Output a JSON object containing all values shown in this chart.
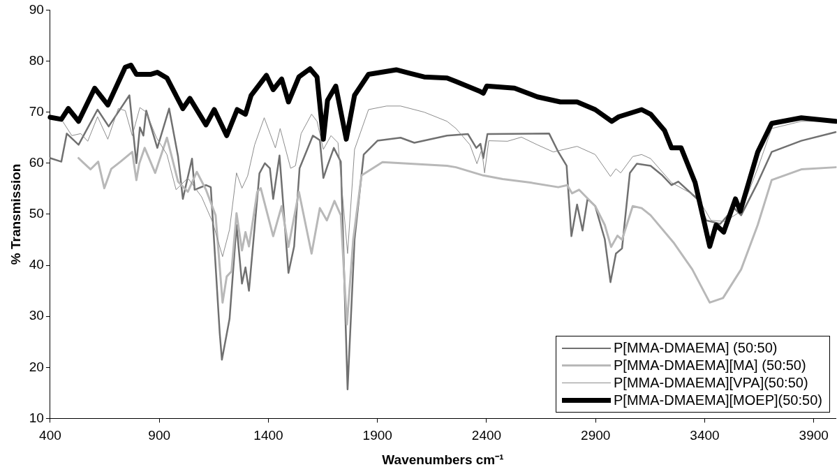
{
  "chart_data": {
    "type": "line",
    "xlabel": "Wavenumbers cm⁻¹",
    "ylabel": "% Transmission",
    "xlim": [
      400,
      4000
    ],
    "ylim": [
      10,
      90
    ],
    "xticks": [
      400,
      900,
      1400,
      1900,
      2400,
      2900,
      3400,
      3900
    ],
    "yticks": [
      10,
      20,
      30,
      40,
      50,
      60,
      70,
      80,
      90
    ],
    "grid": false,
    "legend": "bottom right",
    "series": [
      {
        "name": "P[MMA-DMAEMA] (50:50)",
        "color": "#707070",
        "x": [
          400,
          451,
          476,
          530,
          617,
          668,
          763,
          795,
          811,
          827,
          840,
          891,
          945,
          986,
          1008,
          1050,
          1062,
          1114,
          1136,
          1177,
          1187,
          1222,
          1254,
          1279,
          1295,
          1311,
          1359,
          1384,
          1407,
          1422,
          1451,
          1492,
          1518,
          1543,
          1604,
          1636,
          1652,
          1671,
          1700,
          1732,
          1763,
          1795,
          1837,
          1900,
          2006,
          2069,
          2219,
          2315,
          2353,
          2372,
          2385,
          2404,
          2687,
          2729,
          2767,
          2789,
          2815,
          2840,
          2863,
          2898,
          2942,
          2968,
          2993,
          3021,
          3057,
          3089,
          3152,
          3206,
          3248,
          3279,
          3366,
          3407,
          3471,
          3535,
          3567,
          3643,
          3707,
          3843,
          4000
        ],
        "values": [
          61,
          60.3,
          65.8,
          63.6,
          70.5,
          67.2,
          73.3,
          60,
          67,
          65.4,
          70.3,
          63,
          70.7,
          61.3,
          53,
          60.9,
          54.8,
          55.7,
          55.3,
          26.7,
          21.5,
          29.5,
          47.9,
          36.4,
          39.6,
          35,
          58,
          60,
          59,
          53,
          61.5,
          38.5,
          43.7,
          59,
          65.4,
          64.5,
          57.1,
          59.5,
          63,
          60.3,
          15.7,
          45.1,
          61.7,
          64.4,
          65,
          64,
          65.4,
          65.7,
          63,
          63.8,
          61,
          65.7,
          65.8,
          62.2,
          59.5,
          45.7,
          51.9,
          46.8,
          53,
          51.6,
          45.1,
          36.7,
          42.3,
          43.3,
          58.1,
          59.9,
          59.5,
          57.6,
          55.7,
          56.4,
          53,
          48.8,
          48.1,
          51.2,
          49.8,
          56.2,
          62.2,
          64.4,
          66.1
        ]
      },
      {
        "name": "P[MMA-DMAEMA][MA] (50:50)",
        "color": "#b8b8b8",
        "x": [
          530,
          547,
          585,
          620,
          648,
          680,
          722,
          776,
          795,
          808,
          833,
          881,
          935,
          986,
          1031,
          1072,
          1114,
          1158,
          1190,
          1209,
          1231,
          1254,
          1279,
          1295,
          1311,
          1349,
          1365,
          1422,
          1461,
          1492,
          1540,
          1598,
          1636,
          1668,
          1703,
          1732,
          1760,
          1789,
          1827,
          1923,
          2219,
          2260,
          2385,
          2474,
          2601,
          2729,
          2770,
          2792,
          2824,
          2856,
          2898,
          2942,
          2971,
          3000,
          3021,
          3070,
          3111,
          3152,
          3260,
          3343,
          3423,
          3484,
          3567,
          3643,
          3707,
          3843,
          4000
        ],
        "values": [
          61,
          60.3,
          58.8,
          60.3,
          55.1,
          58.9,
          60.3,
          62.2,
          56.7,
          59.9,
          63,
          58.1,
          65,
          56.4,
          54.4,
          58.3,
          54.8,
          49.8,
          32.7,
          37.8,
          38.8,
          50.2,
          42.9,
          46.5,
          43.7,
          54.4,
          55.1,
          45.7,
          51.6,
          43.6,
          54.4,
          42.3,
          51.2,
          48.8,
          52.6,
          49.8,
          28.4,
          45.1,
          57.6,
          60.2,
          59.5,
          59.2,
          57.6,
          56.9,
          56.2,
          55.3,
          55.7,
          54.1,
          54.8,
          53.4,
          51.6,
          47.9,
          43.6,
          45.8,
          45,
          51.6,
          51.2,
          49.8,
          44.3,
          39.2,
          32.7,
          33.6,
          39.2,
          47.9,
          56.7,
          58.8,
          59.2
        ]
      },
      {
        "name": "P[MMA-DMAEMA][VPA](50:50)",
        "color": "#8c8c8c",
        "x": [
          400,
          451,
          499,
          540,
          572,
          617,
          664,
          712,
          744,
          776,
          811,
          840,
          887,
          935,
          977,
          1031,
          1094,
          1145,
          1190,
          1222,
          1254,
          1279,
          1305,
          1337,
          1381,
          1432,
          1454,
          1502,
          1524,
          1550,
          1598,
          1623,
          1652,
          1687,
          1719,
          1763,
          1795,
          1859,
          1942,
          2006,
          2114,
          2219,
          2260,
          2324,
          2356,
          2378,
          2391,
          2410,
          2496,
          2560,
          2633,
          2706,
          2815,
          2898,
          2968,
          2993,
          3015,
          3070,
          3111,
          3152,
          3248,
          3366,
          3429,
          3493,
          3567,
          3643,
          3707,
          3843,
          4000
        ],
        "values": [
          69,
          68.6,
          65.4,
          65.8,
          64.3,
          69.1,
          64.7,
          70.7,
          70.3,
          65.4,
          70.9,
          70,
          65,
          61.7,
          54.8,
          57.1,
          53.4,
          48.4,
          41.7,
          47,
          58.1,
          55.1,
          57.5,
          63.6,
          68.9,
          63,
          66.8,
          59,
          59.5,
          65.8,
          69.6,
          68.2,
          62.7,
          65.4,
          64,
          42.3,
          62.7,
          70.5,
          71.2,
          71.2,
          70,
          68.2,
          66.8,
          63.6,
          59.9,
          62.7,
          58.1,
          64.4,
          64.3,
          65.1,
          63.6,
          62.2,
          63.3,
          61.7,
          57.4,
          58.9,
          58.1,
          61.3,
          61.7,
          60.9,
          56.2,
          53.4,
          48.8,
          48.6,
          50.6,
          59,
          66.8,
          68.2,
          68.2
        ]
      },
      {
        "name": "P[MMA-DMAEMA][MOEP](50:50)",
        "color": "#000000",
        "x": [
          400,
          451,
          483,
          530,
          604,
          664,
          744,
          770,
          795,
          859,
          891,
          935,
          1008,
          1040,
          1114,
          1152,
          1209,
          1257,
          1295,
          1321,
          1391,
          1422,
          1461,
          1492,
          1540,
          1591,
          1623,
          1652,
          1671,
          1709,
          1757,
          1795,
          1859,
          1986,
          2050,
          2114,
          2219,
          2260,
          2369,
          2385,
          2401,
          2528,
          2633,
          2738,
          2815,
          2898,
          2974,
          3006,
          3111,
          3152,
          3216,
          3248,
          3292,
          3356,
          3423,
          3452,
          3487,
          3541,
          3563,
          3643,
          3707,
          3843,
          4000
        ],
        "values": [
          69,
          68.6,
          70.7,
          68.2,
          74.7,
          71.4,
          78.8,
          79.2,
          77.4,
          77.4,
          77.8,
          76.7,
          70.7,
          72.7,
          67.5,
          70.5,
          65.4,
          70.5,
          69.6,
          73.3,
          77.2,
          74.4,
          76.5,
          72,
          76.9,
          78.5,
          76.9,
          64.7,
          72.3,
          75.1,
          64.7,
          73.3,
          77.4,
          78.3,
          77.6,
          76.9,
          76.7,
          76,
          74.1,
          73.7,
          75.1,
          74.7,
          73,
          72,
          72,
          70.5,
          68.2,
          69.1,
          70.5,
          69.6,
          66.4,
          63,
          63,
          56.2,
          43.7,
          47.9,
          46.5,
          53,
          50.6,
          62.2,
          67.8,
          68.9,
          68.2
        ]
      }
    ]
  }
}
